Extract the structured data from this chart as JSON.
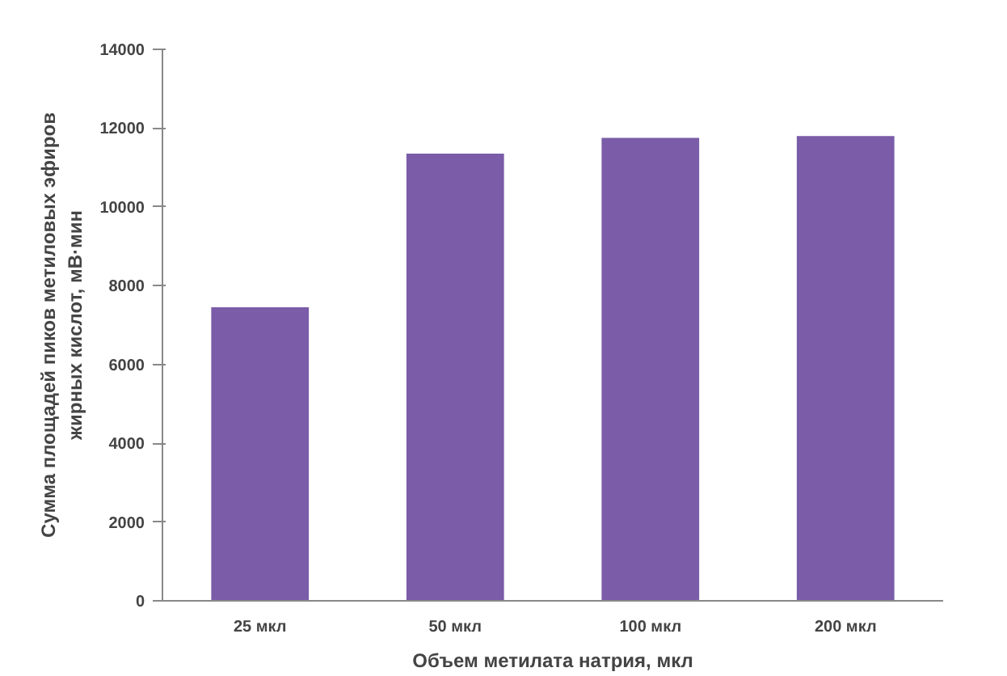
{
  "chart_data": {
    "type": "bar",
    "xlabel": "Объем метилата натрия, мкл",
    "ylabel": "Сумма площадей пиков метиловых эфиров\nжирных кислот, мВ·мин",
    "categories": [
      "25 мкл",
      "50 мкл",
      "100 мкл",
      "200 мкл"
    ],
    "values": [
      7450,
      11350,
      11750,
      11800
    ],
    "color": "#7a5ca8",
    "ylim": [
      0,
      14000
    ],
    "yticks": [
      0,
      2000,
      4000,
      6000,
      8000,
      10000,
      12000,
      14000
    ],
    "grid": false
  }
}
